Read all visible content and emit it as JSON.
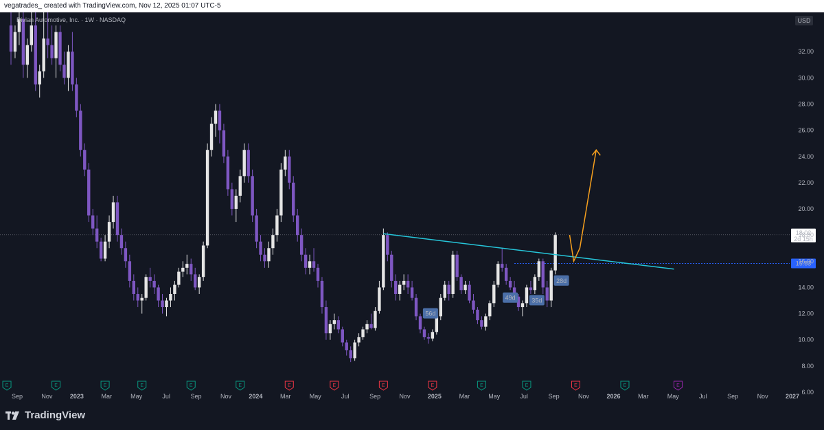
{
  "header": {
    "text": "vegatrades_ created with TradingView.com, Nov 12, 2025 01:07 UTC-5"
  },
  "footer": {
    "brand": "TradingView"
  },
  "colors": {
    "bg": "#131722",
    "up": "#e5e5e5",
    "down": "#7e57c2",
    "trendline": "#26c6da",
    "projection": "#f7a01e",
    "level": "#2962ff",
    "earn_red": "#f23645",
    "earn_green": "#089981",
    "earn_purple": "#9c27b0"
  },
  "chart_data": {
    "type": "candlestick",
    "title": "Rivian Automotive, Inc. · 1W · NASDAQ",
    "currency": "USD",
    "ylim": [
      6,
      35
    ],
    "y_ticks": [
      "6.00",
      "8.00",
      "10.00",
      "12.00",
      "14.00",
      "16.00",
      "18.00",
      "20.00",
      "22.00",
      "24.00",
      "26.00",
      "28.00",
      "30.00",
      "32.00"
    ],
    "x_ticks": [
      "Sep",
      "Nov",
      "2023",
      "Mar",
      "May",
      "Jul",
      "Sep",
      "Nov",
      "2024",
      "Mar",
      "May",
      "Jul",
      "Sep",
      "Nov",
      "2025",
      "Mar",
      "May",
      "Jul",
      "Sep",
      "Nov",
      "2026",
      "Mar",
      "May",
      "Jul",
      "Sep",
      "Nov",
      "2027"
    ],
    "candles": [
      [
        34.0,
        35.0,
        31.0,
        32.0
      ],
      [
        32.0,
        34.0,
        31.5,
        33.5
      ],
      [
        33.5,
        35.0,
        32.5,
        34.5
      ],
      [
        34.5,
        35.0,
        30.0,
        31.0
      ],
      [
        31.0,
        33.0,
        30.0,
        32.5
      ],
      [
        32.5,
        35.0,
        32.0,
        34.0
      ],
      [
        34.0,
        35.0,
        29.0,
        29.5
      ],
      [
        29.5,
        31.0,
        28.5,
        30.5
      ],
      [
        30.5,
        35.0,
        30.0,
        33.0
      ],
      [
        33.0,
        35.0,
        31.5,
        32.5
      ],
      [
        32.5,
        34.0,
        31.0,
        31.5
      ],
      [
        31.5,
        34.0,
        30.0,
        33.5
      ],
      [
        33.5,
        34.0,
        30.5,
        31.0
      ],
      [
        31.0,
        32.0,
        29.5,
        30.0
      ],
      [
        30.0,
        32.5,
        29.0,
        32.0
      ],
      [
        32.0,
        33.5,
        29.0,
        29.5
      ],
      [
        29.5,
        30.0,
        27.0,
        27.5
      ],
      [
        27.5,
        28.0,
        24.0,
        24.5
      ],
      [
        24.5,
        25.0,
        22.5,
        23.0
      ],
      [
        23.0,
        23.5,
        19.0,
        19.5
      ],
      [
        19.5,
        20.0,
        18.0,
        18.5
      ],
      [
        18.5,
        19.5,
        17.0,
        17.5
      ],
      [
        17.5,
        17.8,
        16.0,
        16.2
      ],
      [
        16.2,
        18.0,
        16.0,
        17.5
      ],
      [
        17.5,
        19.5,
        17.0,
        19.0
      ],
      [
        19.0,
        21.0,
        18.5,
        20.5
      ],
      [
        20.5,
        21.0,
        17.5,
        18.0
      ],
      [
        18.0,
        18.5,
        16.5,
        17.0
      ],
      [
        17.0,
        17.5,
        15.5,
        16.0
      ],
      [
        16.0,
        16.5,
        14.0,
        14.5
      ],
      [
        14.5,
        15.0,
        13.0,
        13.5
      ],
      [
        13.5,
        14.0,
        12.5,
        13.0
      ],
      [
        13.0,
        13.5,
        12.0,
        13.2
      ],
      [
        13.2,
        15.0,
        13.0,
        14.8
      ],
      [
        14.8,
        15.5,
        14.0,
        14.5
      ],
      [
        14.5,
        15.0,
        13.5,
        14.0
      ],
      [
        14.0,
        14.2,
        12.5,
        13.0
      ],
      [
        13.0,
        13.5,
        12.0,
        12.5
      ],
      [
        12.5,
        13.2,
        11.8,
        13.0
      ],
      [
        13.0,
        14.0,
        12.5,
        13.5
      ],
      [
        13.5,
        14.5,
        13.0,
        14.2
      ],
      [
        14.2,
        15.5,
        14.0,
        15.2
      ],
      [
        15.2,
        16.0,
        14.8,
        15.5
      ],
      [
        15.5,
        16.5,
        15.0,
        15.8
      ],
      [
        15.8,
        16.2,
        14.5,
        15.0
      ],
      [
        15.0,
        15.5,
        13.8,
        14.0
      ],
      [
        14.0,
        15.0,
        13.5,
        14.8
      ],
      [
        14.8,
        17.5,
        14.5,
        17.2
      ],
      [
        17.2,
        25.0,
        17.0,
        24.5
      ],
      [
        24.5,
        27.0,
        24.0,
        26.5
      ],
      [
        26.5,
        28.0,
        25.5,
        27.5
      ],
      [
        27.5,
        28.0,
        25.0,
        26.0
      ],
      [
        26.0,
        26.5,
        23.5,
        24.0
      ],
      [
        24.0,
        24.5,
        21.0,
        21.5
      ],
      [
        21.5,
        22.0,
        19.5,
        20.0
      ],
      [
        20.0,
        21.5,
        19.0,
        21.0
      ],
      [
        21.0,
        23.0,
        20.5,
        22.5
      ],
      [
        22.5,
        25.0,
        22.0,
        24.5
      ],
      [
        24.5,
        25.0,
        22.0,
        22.5
      ],
      [
        22.5,
        23.0,
        19.0,
        19.5
      ],
      [
        19.5,
        20.0,
        17.0,
        17.5
      ],
      [
        17.5,
        18.0,
        16.0,
        16.5
      ],
      [
        16.5,
        17.0,
        15.5,
        16.0
      ],
      [
        16.0,
        17.5,
        15.5,
        17.0
      ],
      [
        17.0,
        18.5,
        16.5,
        18.0
      ],
      [
        18.0,
        20.0,
        17.5,
        19.5
      ],
      [
        19.5,
        23.5,
        19.0,
        23.0
      ],
      [
        23.0,
        24.5,
        22.5,
        24.0
      ],
      [
        24.0,
        24.5,
        21.5,
        22.0
      ],
      [
        22.0,
        22.5,
        19.0,
        19.5
      ],
      [
        19.5,
        20.0,
        17.5,
        18.0
      ],
      [
        18.0,
        18.5,
        16.0,
        16.5
      ],
      [
        16.5,
        17.0,
        15.0,
        15.5
      ],
      [
        15.5,
        16.5,
        15.0,
        16.0
      ],
      [
        16.0,
        17.0,
        15.2,
        15.5
      ],
      [
        15.5,
        15.8,
        14.0,
        14.5
      ],
      [
        14.5,
        14.8,
        12.0,
        12.5
      ],
      [
        12.5,
        13.0,
        10.0,
        10.5
      ],
      [
        10.5,
        11.5,
        10.0,
        11.2
      ],
      [
        11.2,
        12.0,
        10.8,
        11.5
      ],
      [
        11.5,
        11.8,
        10.5,
        10.8
      ],
      [
        10.8,
        11.0,
        9.5,
        9.8
      ],
      [
        9.8,
        10.0,
        8.8,
        9.2
      ],
      [
        9.2,
        9.5,
        8.3,
        8.6
      ],
      [
        8.6,
        10.0,
        8.4,
        9.8
      ],
      [
        9.8,
        10.5,
        9.5,
        10.2
      ],
      [
        10.2,
        11.0,
        10.0,
        10.8
      ],
      [
        10.8,
        11.5,
        10.5,
        11.2
      ],
      [
        11.2,
        12.0,
        10.8,
        10.9
      ],
      [
        10.9,
        12.5,
        10.7,
        12.2
      ],
      [
        12.2,
        14.5,
        12.0,
        14.0
      ],
      [
        14.0,
        18.5,
        13.8,
        18.0
      ],
      [
        18.0,
        18.2,
        16.0,
        16.5
      ],
      [
        16.5,
        16.8,
        14.0,
        14.5
      ],
      [
        14.5,
        15.0,
        13.0,
        13.5
      ],
      [
        13.5,
        14.5,
        13.0,
        14.2
      ],
      [
        14.2,
        15.0,
        13.8,
        14.5
      ],
      [
        14.5,
        15.0,
        13.5,
        14.0
      ],
      [
        14.0,
        14.5,
        13.0,
        13.2
      ],
      [
        13.2,
        13.5,
        11.5,
        11.8
      ],
      [
        11.8,
        12.0,
        10.5,
        10.8
      ],
      [
        10.8,
        11.0,
        10.0,
        10.2
      ],
      [
        10.2,
        10.5,
        9.7,
        10.1
      ],
      [
        10.1,
        10.8,
        9.9,
        10.6
      ],
      [
        10.6,
        12.0,
        10.4,
        11.8
      ],
      [
        11.8,
        13.5,
        11.5,
        13.2
      ],
      [
        13.2,
        14.5,
        13.0,
        14.2
      ],
      [
        14.2,
        14.5,
        13.0,
        13.5
      ],
      [
        13.5,
        16.8,
        13.2,
        16.5
      ],
      [
        16.5,
        16.8,
        14.5,
        14.8
      ],
      [
        14.8,
        15.0,
        13.5,
        13.8
      ],
      [
        13.8,
        14.5,
        13.5,
        14.2
      ],
      [
        14.2,
        14.5,
        12.8,
        13.0
      ],
      [
        13.0,
        13.5,
        12.0,
        12.3
      ],
      [
        12.3,
        12.5,
        11.2,
        11.5
      ],
      [
        11.5,
        11.8,
        10.8,
        11.0
      ],
      [
        11.0,
        12.0,
        10.7,
        11.8
      ],
      [
        11.8,
        13.0,
        11.5,
        12.8
      ],
      [
        12.8,
        14.5,
        12.5,
        14.2
      ],
      [
        14.2,
        16.0,
        14.0,
        15.8
      ],
      [
        15.8,
        17.0,
        15.2,
        15.5
      ],
      [
        15.5,
        15.8,
        14.2,
        14.5
      ],
      [
        14.5,
        14.8,
        13.8,
        14.0
      ],
      [
        14.0,
        14.5,
        13.0,
        13.3
      ],
      [
        13.3,
        13.5,
        12.2,
        12.5
      ],
      [
        12.5,
        13.0,
        11.8,
        12.8
      ],
      [
        12.8,
        14.2,
        12.5,
        14.0
      ],
      [
        14.0,
        14.5,
        13.5,
        13.8
      ],
      [
        13.8,
        15.0,
        13.5,
        14.8
      ],
      [
        14.8,
        16.2,
        14.5,
        16.0
      ],
      [
        16.0,
        16.2,
        13.5,
        14.0
      ],
      [
        14.0,
        14.5,
        12.5,
        13.0
      ],
      [
        13.0,
        15.5,
        12.5,
        15.3
      ],
      [
        15.3,
        18.2,
        15.0,
        18.0
      ]
    ],
    "levels": [
      {
        "label": "18.02",
        "sublabel": "2d 15h",
        "value": 18.02
      },
      {
        "label": "15.83",
        "value": 15.83
      }
    ],
    "trendline": {
      "from": [
        91,
        18.1
      ],
      "to": [
        162,
        15.4
      ]
    },
    "projection": [
      [
        136.5,
        18.0
      ],
      [
        137.5,
        16.0
      ],
      [
        139,
        17.0
      ],
      [
        143,
        24.5
      ]
    ],
    "duration_labels": [
      {
        "text": "56d",
        "x": 102.5,
        "y": 12.0
      },
      {
        "text": "49d",
        "x": 122,
        "y": 13.2
      },
      {
        "text": "28d",
        "x": 134.5,
        "y": 14.5
      },
      {
        "text": "35d",
        "x": 128.5,
        "y": 13.0
      }
    ],
    "earnings": [
      {
        "type": "green",
        "label": "E",
        "date_idx": -1
      },
      {
        "type": "green",
        "label": "E",
        "date_idx": 11
      },
      {
        "type": "green",
        "label": "E",
        "date_idx": 23
      },
      {
        "type": "green",
        "label": "E",
        "date_idx": 32
      },
      {
        "type": "green",
        "label": "E",
        "date_idx": 44
      },
      {
        "type": "green",
        "label": "E",
        "date_idx": 56
      },
      {
        "type": "red",
        "label": "E",
        "date_idx": 68
      },
      {
        "type": "red",
        "label": "E",
        "date_idx": 79
      },
      {
        "type": "red",
        "label": "E",
        "date_idx": 91
      },
      {
        "type": "red",
        "label": "E",
        "date_idx": 103
      },
      {
        "type": "green",
        "label": "E",
        "date_idx": 115
      },
      {
        "type": "green",
        "label": "E",
        "date_idx": 126
      },
      {
        "type": "red",
        "label": "E",
        "date_idx": 138
      },
      {
        "type": "green",
        "label": "E",
        "date_idx": 150
      },
      {
        "type": "purple",
        "label": "E",
        "date_idx": 163
      }
    ]
  }
}
